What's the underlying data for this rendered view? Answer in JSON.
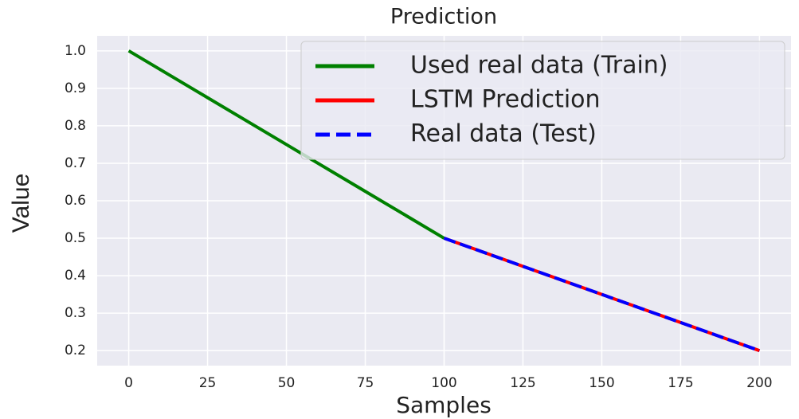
{
  "chart_data": {
    "type": "line",
    "title": "Prediction",
    "xlabel": "Samples",
    "ylabel": "Value",
    "series": [
      {
        "name": "Used real data (Train)",
        "color": "#008000",
        "style": "solid",
        "x": [
          0,
          25,
          50,
          75,
          100
        ],
        "values": [
          1.0,
          0.875,
          0.75,
          0.625,
          0.5
        ]
      },
      {
        "name": "LSTM Prediction",
        "color": "#ff0000",
        "style": "solid",
        "x": [
          100,
          125,
          150,
          175,
          200
        ],
        "values": [
          0.5,
          0.425,
          0.35,
          0.275,
          0.2
        ]
      },
      {
        "name": "Real data (Test)",
        "color": "#0000ff",
        "style": "dashed",
        "x": [
          100,
          125,
          150,
          175,
          200
        ],
        "values": [
          0.5,
          0.425,
          0.35,
          0.275,
          0.2
        ]
      }
    ],
    "xlim": [
      -10,
      210
    ],
    "xticks": [
      0,
      25,
      50,
      75,
      100,
      125,
      150,
      175,
      200
    ],
    "ylim": [
      0.16,
      1.04
    ],
    "yticks": [
      0.2,
      0.3,
      0.4,
      0.5,
      0.6,
      0.7,
      0.8,
      0.9,
      {
        "value": 1.0,
        "label": "1.0"
      }
    ],
    "grid": true,
    "legend": "upper right"
  }
}
